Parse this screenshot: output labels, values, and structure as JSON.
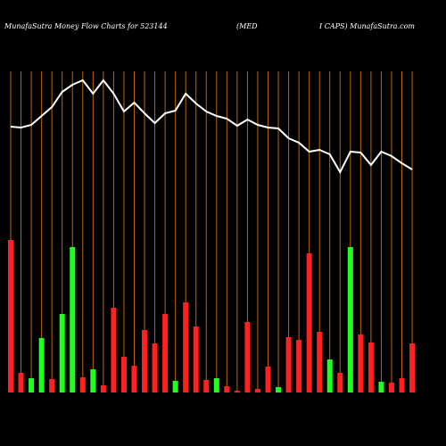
{
  "chart_data": {
    "type": "bar_line",
    "title": "MunafaSutra  Money Flow  Charts for 523144",
    "title_middle": "(MED",
    "title_right": "I CAPS) MunafaSutra.com",
    "categories": [
      null,
      null,
      null,
      null,
      null,
      null,
      null,
      null,
      null,
      null,
      null,
      null,
      null,
      null,
      null,
      null,
      null,
      null,
      null,
      null,
      null,
      null,
      null,
      null,
      null,
      null,
      null,
      null,
      null,
      null,
      null,
      null,
      null,
      null,
      null,
      null,
      null,
      null,
      null,
      null
    ],
    "ylim": [
      0,
      440
    ],
    "series": [
      {
        "kind": "bar",
        "colors": [
          "#ff2020",
          "#ff2020",
          "#20ff20",
          "#20ff20",
          "#ff2020",
          "#20ff20",
          "#20ff20",
          "#ff2020",
          "#20ff20",
          "#ff2020",
          "#ff2020",
          "#ff2020",
          "#ff2020",
          "#ff2020",
          "#ff2020",
          "#ff2020",
          "#20ff20",
          "#ff2020",
          "#ff2020",
          "#ff2020",
          "#20ff20",
          "#ff2020",
          "#ff2020",
          "#ff2020",
          "#ff2020",
          "#ff2020",
          "#20ff20",
          "#ff2020",
          "#ff2020",
          "#ff2020",
          "#ff2020",
          "#20ff20",
          "#ff2020",
          "#20ff20",
          "#ff2020",
          "#ff2020",
          "#20ff20",
          "#ff2020",
          "#ff2020",
          "#ff2020"
        ],
        "values": [
          171,
          22,
          16,
          61,
          15,
          88,
          163,
          17,
          26,
          8,
          95,
          40,
          30,
          70,
          55,
          88,
          13,
          101,
          74,
          14,
          16,
          7,
          2,
          79,
          4,
          29,
          6,
          62,
          59,
          156,
          68,
          37,
          22,
          163,
          65,
          56,
          12,
          11,
          16,
          55
        ]
      },
      {
        "kind": "line",
        "color": "#ffffff",
        "values": [
          298,
          297,
          300,
          310,
          320,
          337,
          345,
          350,
          335,
          350,
          335,
          315,
          325,
          313,
          302,
          313,
          316,
          335,
          324,
          315,
          310,
          307,
          299,
          306,
          300,
          297,
          296,
          285,
          280,
          270,
          272,
          267,
          247,
          270,
          269,
          255,
          270,
          265,
          257,
          250
        ]
      }
    ],
    "grid_color": "#b8660b"
  }
}
